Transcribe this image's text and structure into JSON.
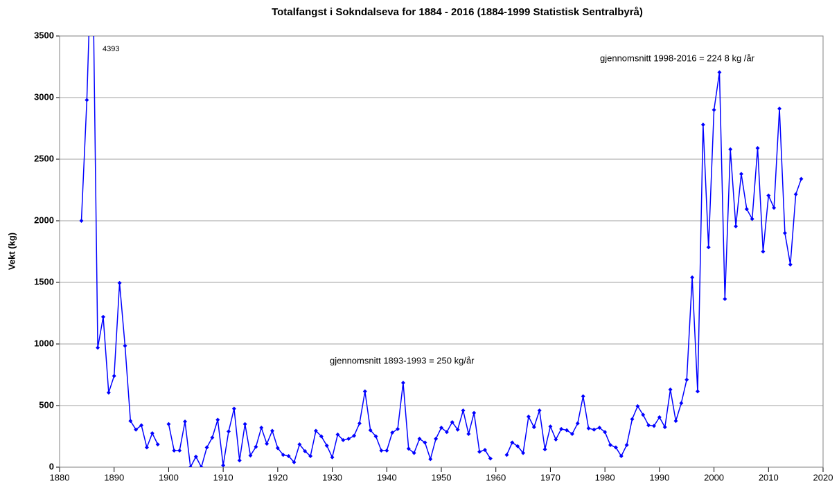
{
  "chart_data": {
    "type": "line",
    "title": "Totalfangst i Sokndalseva for 1884 - 2016 (1884-1999 Statistisk Sentralbyrå)",
    "y_label": "Vekt (kg)",
    "annotations": [
      "4393",
      "gjennomsnitt  1998-2016 = 224 8  kg /år",
      "gjennomsnitt 1893-1993 = 250 kg/år"
    ],
    "x": [
      1884,
      1885,
      1886,
      1887,
      1888,
      1889,
      1890,
      1891,
      1892,
      1893,
      1894,
      1895,
      1896,
      1897,
      1898,
      1899,
      1900,
      1901,
      1902,
      1903,
      1904,
      1905,
      1906,
      1907,
      1908,
      1909,
      1910,
      1911,
      1912,
      1913,
      1914,
      1915,
      1916,
      1917,
      1918,
      1919,
      1920,
      1921,
      1922,
      1923,
      1924,
      1925,
      1926,
      1927,
      1928,
      1929,
      1930,
      1931,
      1932,
      1933,
      1934,
      1935,
      1936,
      1937,
      1938,
      1939,
      1940,
      1941,
      1942,
      1943,
      1944,
      1945,
      1946,
      1947,
      1948,
      1949,
      1950,
      1951,
      1952,
      1953,
      1954,
      1955,
      1956,
      1957,
      1958,
      1959,
      1960,
      1961,
      1962,
      1963,
      1964,
      1965,
      1966,
      1967,
      1968,
      1969,
      1970,
      1971,
      1972,
      1973,
      1974,
      1975,
      1976,
      1977,
      1978,
      1979,
      1980,
      1981,
      1982,
      1983,
      1984,
      1985,
      1986,
      1987,
      1988,
      1989,
      1990,
      1991,
      1992,
      1993,
      1994,
      1995,
      1996,
      1997,
      1998,
      1999,
      2000,
      2001,
      2002,
      2003,
      2004,
      2005,
      2006,
      2007,
      2008,
      2009,
      2010,
      2011,
      2012,
      2013,
      2014,
      2015,
      2016
    ],
    "series": [
      {
        "name": "Totalfangst",
        "color": "#0000ff",
        "values": [
          2000,
          2980,
          4393,
          970,
          1220,
          605,
          740,
          1495,
          985,
          375,
          305,
          340,
          160,
          275,
          185,
          null,
          350,
          135,
          135,
          370,
          0,
          85,
          0,
          160,
          240,
          385,
          15,
          290,
          475,
          55,
          350,
          95,
          165,
          320,
          190,
          295,
          155,
          100,
          90,
          40,
          185,
          130,
          90,
          295,
          250,
          175,
          80,
          265,
          220,
          230,
          255,
          355,
          615,
          300,
          250,
          135,
          135,
          280,
          310,
          685,
          150,
          115,
          230,
          200,
          65,
          230,
          320,
          285,
          365,
          305,
          460,
          270,
          440,
          125,
          140,
          70,
          null,
          null,
          100,
          200,
          170,
          115,
          410,
          325,
          460,
          145,
          330,
          225,
          310,
          300,
          270,
          355,
          575,
          315,
          305,
          320,
          285,
          180,
          160,
          90,
          180,
          390,
          495,
          425,
          340,
          335,
          405,
          325,
          630,
          375,
          520,
          710,
          1540,
          615,
          2780,
          1785,
          2900,
          3205,
          1365,
          2580,
          1955,
          2380,
          2095,
          2015,
          2590,
          1750,
          2205,
          2105,
          2910,
          1900,
          1645,
          2215,
          2340
        ]
      }
    ],
    "xlim": [
      1880,
      2020
    ],
    "xticks": [
      1880,
      1890,
      1900,
      1910,
      1920,
      1930,
      1940,
      1950,
      1960,
      1970,
      1980,
      1990,
      2000,
      2010,
      2020
    ],
    "ylim": [
      0,
      3500
    ],
    "yticks": [
      0,
      500,
      1000,
      1500,
      2000,
      2500,
      3000,
      3500
    ],
    "grid": true
  }
}
